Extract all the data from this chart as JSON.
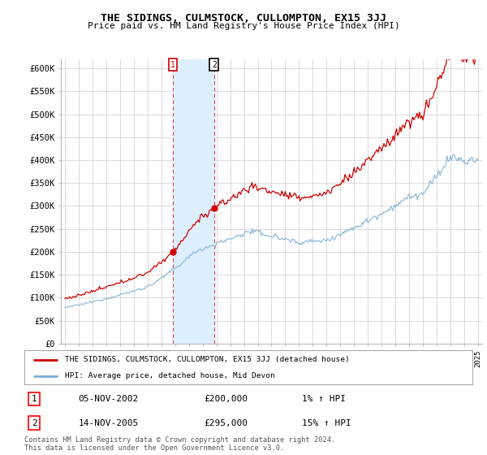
{
  "title": "THE SIDINGS, CULMSTOCK, CULLOMPTON, EX15 3JJ",
  "subtitle": "Price paid vs. HM Land Registry's House Price Index (HPI)",
  "legend_label_red": "THE SIDINGS, CULMSTOCK, CULLOMPTON, EX15 3JJ (detached house)",
  "legend_label_blue": "HPI: Average price, detached house, Mid Devon",
  "transaction1_date": "05-NOV-2002",
  "transaction1_price": "£200,000",
  "transaction1_hpi": "1% ↑ HPI",
  "transaction2_date": "14-NOV-2005",
  "transaction2_price": "£295,000",
  "transaction2_hpi": "15% ↑ HPI",
  "footnote": "Contains HM Land Registry data © Crown copyright and database right 2024.\nThis data is licensed under the Open Government Licence v3.0.",
  "ylim": [
    0,
    620000
  ],
  "yticks": [
    0,
    50000,
    100000,
    150000,
    200000,
    250000,
    300000,
    350000,
    400000,
    450000,
    500000,
    550000,
    600000
  ],
  "ytick_labels": [
    "£0",
    "£50K",
    "£100K",
    "£150K",
    "£200K",
    "£250K",
    "£300K",
    "£350K",
    "£400K",
    "£450K",
    "£500K",
    "£550K",
    "£600K"
  ],
  "background_color": "#ffffff",
  "plot_bg_color": "#ffffff",
  "grid_color": "#cccccc",
  "red_color": "#cc0000",
  "blue_color": "#7aafd4",
  "shade_color": "#ddeeff",
  "t1_year": 2002.833,
  "t2_year": 2005.833,
  "t1_price": 200000,
  "t2_price": 295000,
  "xstart": 1995,
  "xend": 2025
}
